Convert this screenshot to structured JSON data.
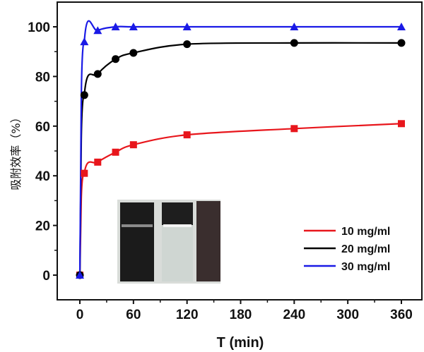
{
  "chart_data": {
    "type": "line",
    "xlabel": "T (min)",
    "ylabel": "吸附效率（%）",
    "xlim": [
      -26,
      384
    ],
    "ylim": [
      -10,
      109
    ],
    "xticks": [
      0,
      60,
      120,
      180,
      240,
      300,
      360
    ],
    "yticks": [
      0,
      20,
      40,
      60,
      80,
      100
    ],
    "grid": false,
    "legend_position": "bottom-right",
    "x": [
      0,
      5,
      20,
      40,
      60,
      120,
      240,
      360
    ],
    "series": [
      {
        "name": "10 mg/ml",
        "color": "#e8161c",
        "marker": "square",
        "values": [
          0,
          41,
          45.5,
          49.5,
          52.5,
          56.5,
          59,
          61
        ]
      },
      {
        "name": "20 mg/ml",
        "color": "#000000",
        "marker": "circle",
        "values": [
          0,
          72.5,
          81,
          87,
          89.5,
          93,
          93.5,
          93.5
        ]
      },
      {
        "name": "30 mg/ml",
        "color": "#1a1ae6",
        "marker": "triangle",
        "values": [
          0,
          94,
          98.5,
          100,
          100,
          100,
          100,
          100
        ]
      }
    ],
    "inset": "photo of two vials: dark solution and clear solution, with a dark adsorbent block"
  }
}
